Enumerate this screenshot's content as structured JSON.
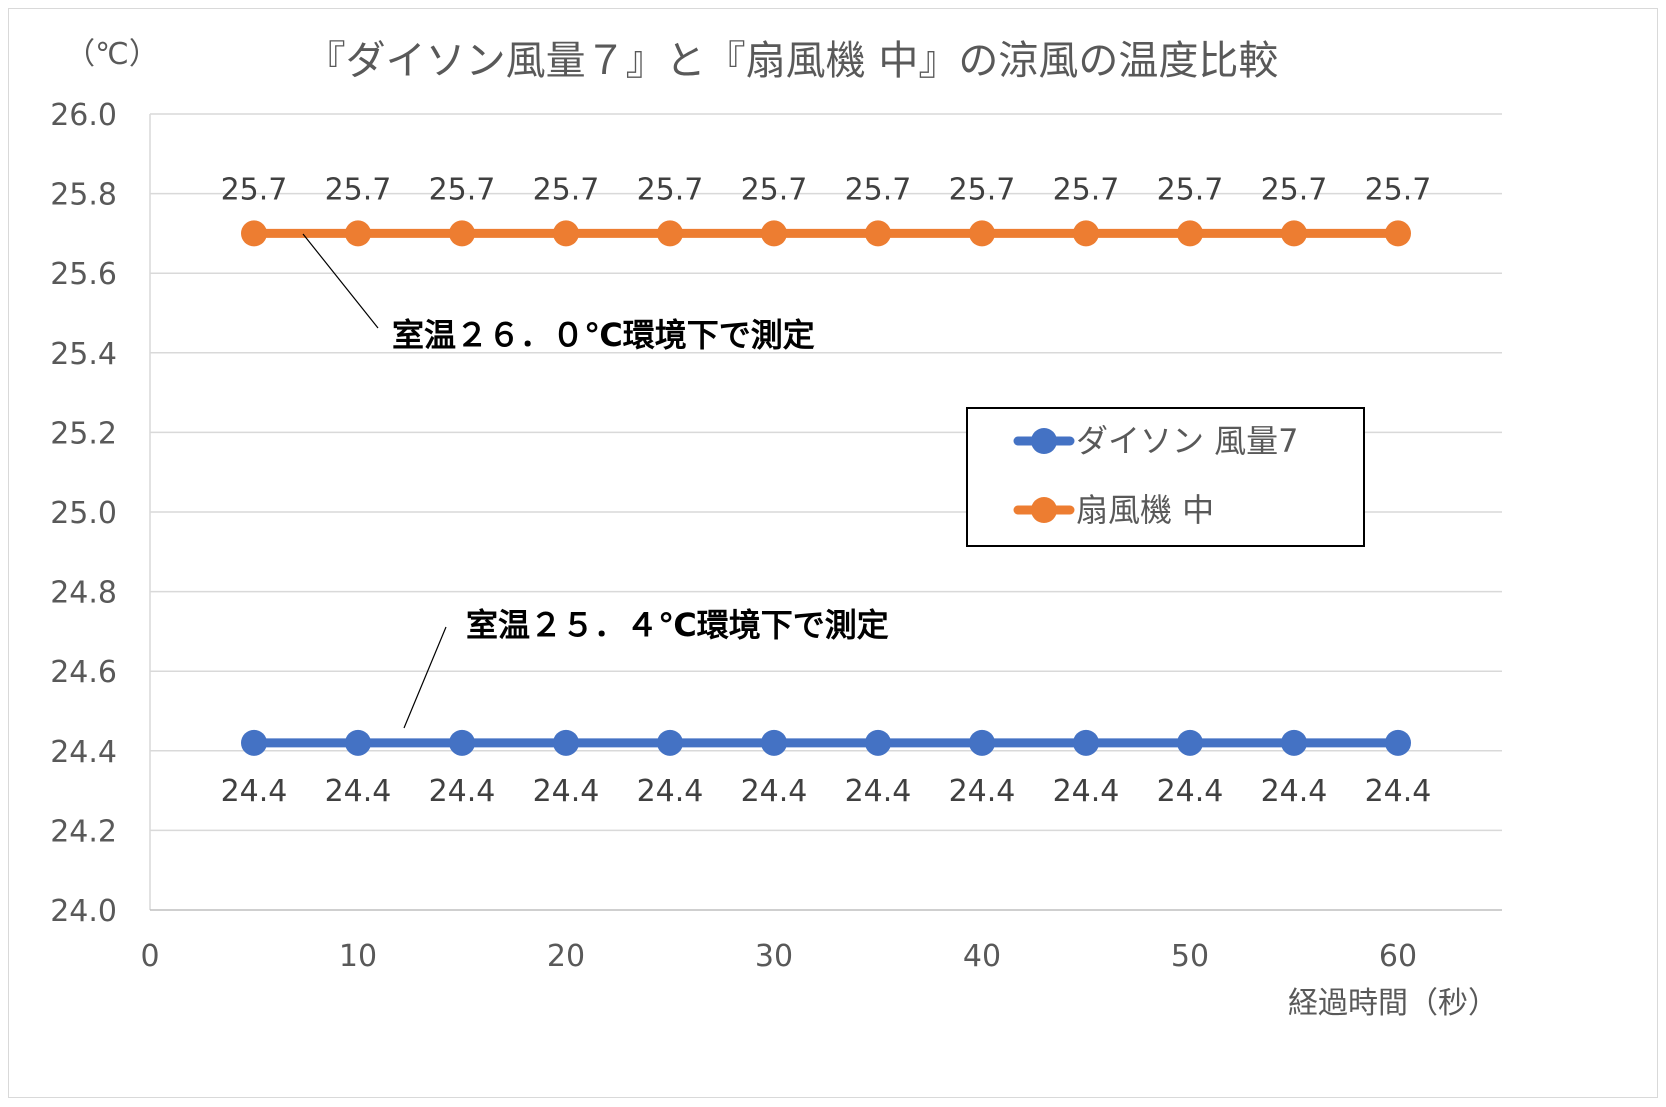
{
  "chart_data": {
    "type": "line",
    "title": "『ダイソン風量７』と『扇風機 中』の涼風の温度比較",
    "y_unit_label": "（℃）",
    "xlabel": "経過時間（秒）",
    "ylabel": "",
    "xlim": [
      0,
      65
    ],
    "ylim": [
      24.0,
      26.0
    ],
    "x_ticks": [
      "0",
      "10",
      "20",
      "30",
      "40",
      "50",
      "60"
    ],
    "y_ticks": [
      "26.0",
      "25.8",
      "25.6",
      "25.4",
      "25.2",
      "25.0",
      "24.8",
      "24.6",
      "24.4",
      "24.2",
      "24.0"
    ],
    "grid": true,
    "x": [
      5,
      10,
      15,
      20,
      25,
      30,
      35,
      40,
      45,
      50,
      55,
      60
    ],
    "series": [
      {
        "name": "ダイソン 風量7",
        "color": "#4472c4",
        "values": [
          24.42,
          24.42,
          24.42,
          24.42,
          24.42,
          24.42,
          24.42,
          24.42,
          24.42,
          24.42,
          24.42,
          24.42
        ],
        "data_labels": [
          "24.4",
          "24.4",
          "24.4",
          "24.4",
          "24.4",
          "24.4",
          "24.4",
          "24.4",
          "24.4",
          "24.4",
          "24.4",
          "24.4"
        ],
        "label_position": "below"
      },
      {
        "name": "扇風機 中",
        "color": "#ed7d31",
        "values": [
          25.7,
          25.7,
          25.7,
          25.7,
          25.7,
          25.7,
          25.7,
          25.7,
          25.7,
          25.7,
          25.7,
          25.7
        ],
        "data_labels": [
          "25.7",
          "25.7",
          "25.7",
          "25.7",
          "25.7",
          "25.7",
          "25.7",
          "25.7",
          "25.7",
          "25.7",
          "25.7",
          "25.7"
        ],
        "label_position": "above"
      }
    ],
    "annotations": [
      {
        "text": "室温２６．０℃環境下で測定",
        "series_index": 1
      },
      {
        "text": "室温２５．４℃環境下で測定",
        "series_index": 0
      }
    ],
    "legend": {
      "placement": "right-middle"
    }
  }
}
